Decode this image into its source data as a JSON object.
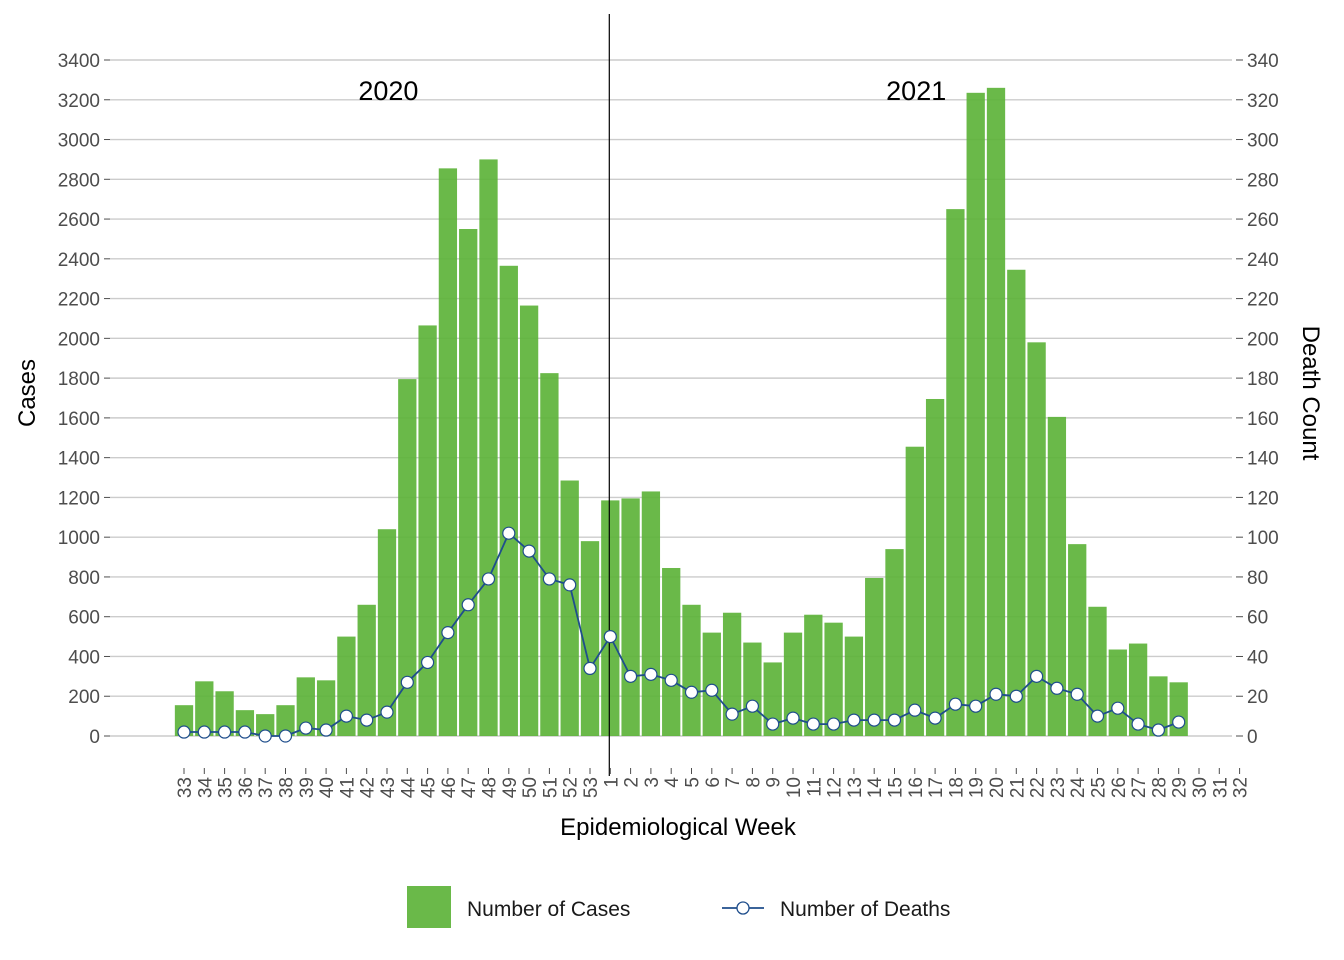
{
  "chart_data": {
    "type": "bar",
    "title": "",
    "xlabel": "Epidemiological Week",
    "ylabel": "Cases",
    "y2label": "Death Count",
    "ylim": [
      0,
      3400
    ],
    "y2lim": [
      0,
      340
    ],
    "yticks": [
      0,
      200,
      400,
      600,
      800,
      1000,
      1200,
      1400,
      1600,
      1800,
      2000,
      2200,
      2400,
      2600,
      2800,
      3000,
      3200,
      3400
    ],
    "y2ticks": [
      0,
      20,
      40,
      60,
      80,
      100,
      120,
      140,
      160,
      180,
      200,
      220,
      240,
      260,
      280,
      300,
      320,
      340
    ],
    "grid": "horizontal",
    "legend_position": "bottom",
    "categories": [
      "33",
      "34",
      "35",
      "36",
      "37",
      "38",
      "39",
      "40",
      "41",
      "42",
      "43",
      "44",
      "45",
      "46",
      "47",
      "48",
      "49",
      "50",
      "51",
      "52",
      "53",
      "1",
      "2",
      "3",
      "4",
      "5",
      "6",
      "7",
      "8",
      "9",
      "10",
      "11",
      "12",
      "13",
      "14",
      "15",
      "16",
      "17",
      "18",
      "19",
      "20",
      "21",
      "22",
      "23",
      "24",
      "25",
      "26",
      "27",
      "28",
      "29",
      "30",
      "31",
      "32"
    ],
    "year_labels": [
      {
        "text": "2020",
        "category": "41"
      },
      {
        "text": "2021",
        "category": "14"
      }
    ],
    "year_divider_category": "1",
    "series": [
      {
        "name": "Number of Cases",
        "type": "bar",
        "axis": "left",
        "color": "#5db33a",
        "values": [
          155,
          275,
          225,
          130,
          110,
          155,
          295,
          280,
          500,
          660,
          1040,
          1795,
          2065,
          2855,
          2550,
          2900,
          2365,
          2165,
          1825,
          1285,
          980,
          1185,
          1195,
          1230,
          845,
          660,
          520,
          620,
          470,
          370,
          520,
          610,
          570,
          500,
          795,
          940,
          1455,
          1695,
          2650,
          3235,
          3260,
          2345,
          1980,
          1605,
          965,
          650,
          435,
          465,
          300,
          270,
          null,
          null,
          null
        ]
      },
      {
        "name": "Number of Deaths",
        "type": "line",
        "axis": "right",
        "color": "#1f4e8c",
        "values": [
          2,
          2,
          2,
          2,
          0,
          0,
          4,
          3,
          10,
          8,
          12,
          27,
          37,
          52,
          66,
          79,
          102,
          93,
          79,
          76,
          34,
          50,
          30,
          31,
          28,
          22,
          23,
          11,
          15,
          6,
          9,
          6,
          6,
          8,
          8,
          8,
          13,
          9,
          16,
          15,
          21,
          20,
          30,
          24,
          21,
          10,
          14,
          6,
          3,
          7,
          null,
          null,
          null
        ]
      }
    ]
  }
}
